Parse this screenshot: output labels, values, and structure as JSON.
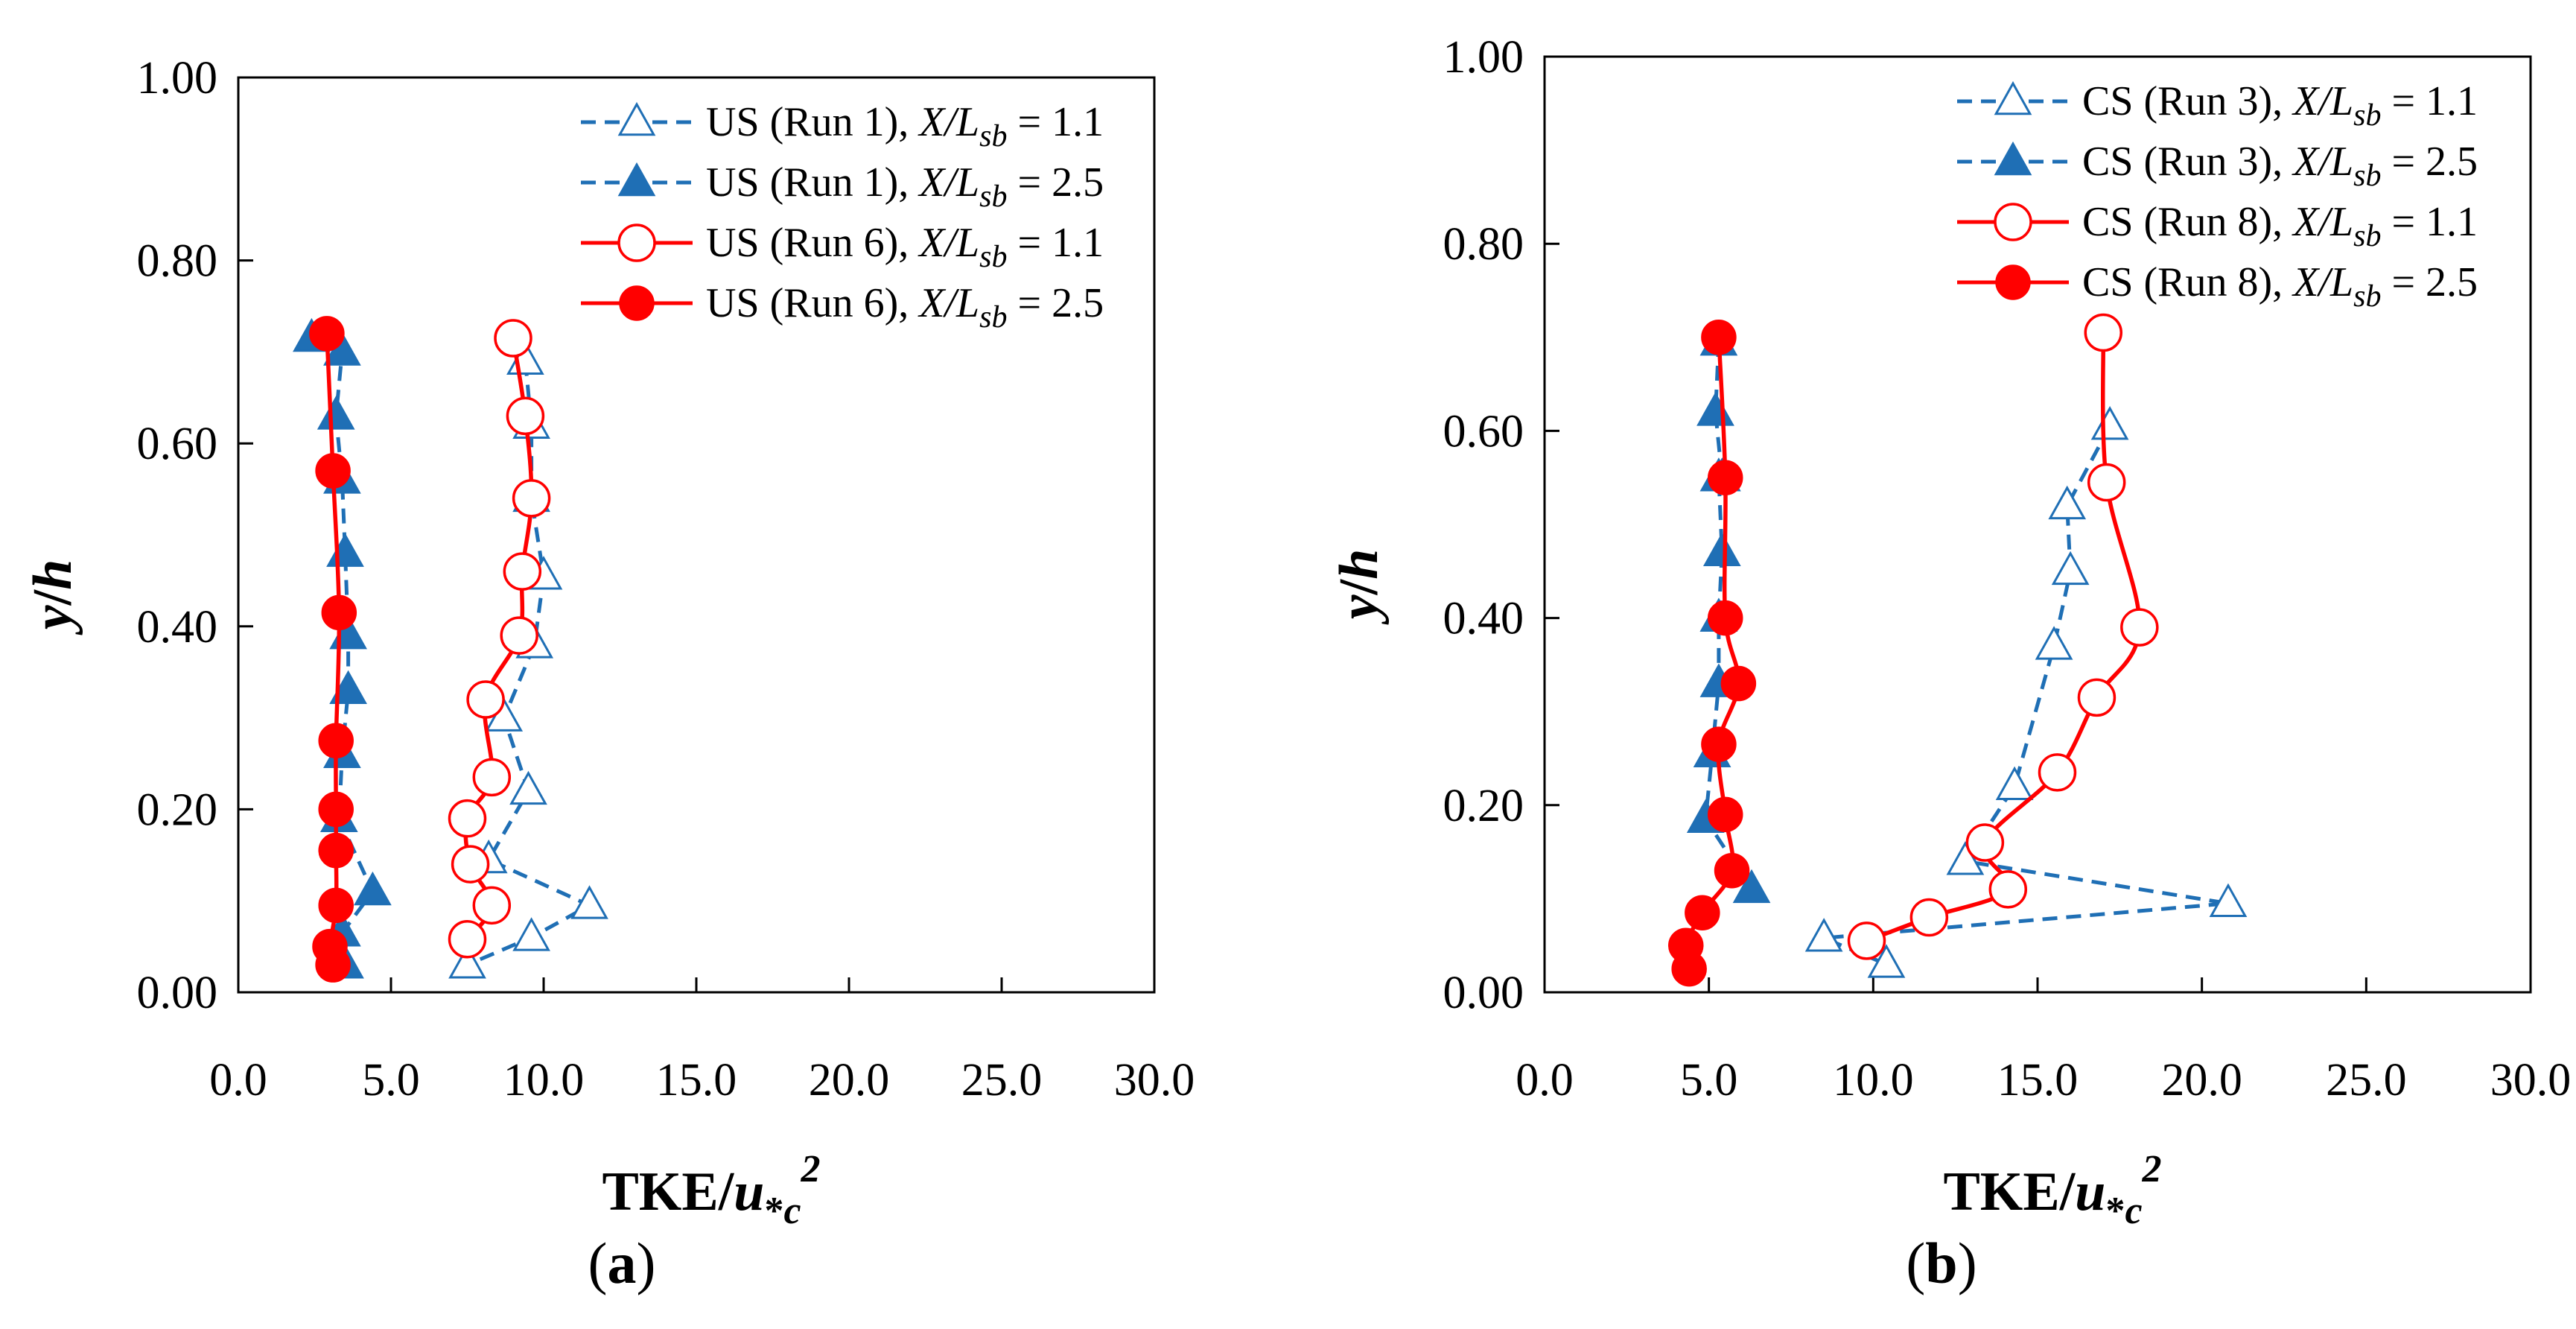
{
  "chart_data": [
    {
      "type": "line",
      "panel_label": {
        "pre": "(",
        "letter": "a",
        "post": ")"
      },
      "xlabel": {
        "main": "TKE/",
        "var": "u",
        "sub_star": "*",
        "sub_c": "c",
        "sup": "2"
      },
      "ylabel": {
        "var1": "y",
        "slash": "/",
        "var2": "h"
      },
      "xlim": [
        0,
        30
      ],
      "ylim": [
        0,
        1
      ],
      "xticks": [
        "0.0",
        "5.0",
        "10.0",
        "15.0",
        "20.0",
        "25.0",
        "30.0"
      ],
      "yticks": [
        "0.00",
        "0.20",
        "0.40",
        "0.60",
        "0.80",
        "1.00"
      ],
      "grid": false,
      "legend_position": "top-right",
      "series": [
        {
          "prefix": "US (Run 1), ",
          "var": "X",
          "slash": "/",
          "sub_var": "L",
          "sub": "sb",
          "suffix": " = 1.1",
          "color": "#1f6fb5",
          "line": "dashed",
          "marker": "triangle-open",
          "x": [
            7.5,
            11.5,
            8.2,
            9.5,
            8.7,
            9.7,
            10.0,
            9.6,
            9.6,
            9.4,
            9.6
          ],
          "y": [
            0.03,
            0.095,
            0.145,
            0.22,
            0.3,
            0.38,
            0.455,
            0.54,
            0.62,
            0.69,
            0.06
          ]
        },
        {
          "prefix": "US (Run 1), ",
          "var": "X",
          "slash": "/",
          "sub_var": "L",
          "sub": "sb",
          "suffix": " = 2.5",
          "color": "#1f6fb5",
          "line": "dashed",
          "marker": "triangle-filled",
          "x": [
            3.5,
            3.4,
            4.4,
            3.3,
            3.4,
            3.6,
            3.6,
            3.5,
            3.4,
            3.2,
            3.4,
            2.4
          ],
          "y": [
            0.03,
            0.065,
            0.11,
            0.19,
            0.26,
            0.33,
            0.39,
            0.48,
            0.56,
            0.63,
            0.7,
            0.715
          ]
        },
        {
          "prefix": "US (Run 6), ",
          "var": "X",
          "slash": "/",
          "sub_var": "L",
          "sub": "sb",
          "suffix": " = 1.1",
          "color": "#ff0000",
          "line": "solid",
          "marker": "circle-open",
          "x": [
            7.5,
            8.3,
            7.6,
            7.5,
            8.3,
            8.1,
            9.2,
            9.3,
            9.6,
            9.4,
            9.0
          ],
          "y": [
            0.058,
            0.095,
            0.14,
            0.19,
            0.235,
            0.32,
            0.39,
            0.46,
            0.54,
            0.63,
            0.715
          ]
        },
        {
          "prefix": "US (Run 6), ",
          "var": "X",
          "slash": "/",
          "sub_var": "L",
          "sub": "sb",
          "suffix": " = 2.5",
          "color": "#ff0000",
          "line": "solid",
          "marker": "circle-filled",
          "x": [
            3.1,
            3.0,
            3.2,
            3.2,
            3.2,
            3.2,
            3.3,
            3.1,
            2.9
          ],
          "y": [
            0.03,
            0.05,
            0.095,
            0.155,
            0.2,
            0.275,
            0.415,
            0.57,
            0.72
          ]
        }
      ]
    },
    {
      "type": "line",
      "panel_label": {
        "pre": "(",
        "letter": "b",
        "post": ")"
      },
      "xlabel": {
        "main": "TKE/",
        "var": "u",
        "sub_star": "*",
        "sub_c": "c",
        "sup": "2"
      },
      "ylabel": {
        "var1": "y",
        "slash": "/",
        "var2": "h"
      },
      "xlim": [
        0,
        30
      ],
      "ylim": [
        0,
        1
      ],
      "xticks": [
        "0.0",
        "5.0",
        "10.0",
        "15.0",
        "20.0",
        "25.0",
        "30.0"
      ],
      "yticks": [
        "0.00",
        "0.20",
        "0.40",
        "0.60",
        "0.80",
        "1.00"
      ],
      "grid": false,
      "legend_position": "top-right",
      "series": [
        {
          "prefix": "CS (Run 3), ",
          "var": "X",
          "slash": "/",
          "sub_var": "L",
          "sub": "sb",
          "suffix": " = 1.1",
          "color": "#1f6fb5",
          "line": "dashed",
          "marker": "triangle-open",
          "x": [
            10.4,
            8.5,
            20.8,
            12.8,
            14.3,
            15.5,
            16.0,
            15.9,
            17.2
          ],
          "y": [
            0.03,
            0.058,
            0.095,
            0.14,
            0.22,
            0.37,
            0.45,
            0.52,
            0.605
          ]
        },
        {
          "prefix": "CS (Run 3), ",
          "var": "X",
          "slash": "/",
          "sub_var": "L",
          "sub": "sb",
          "suffix": " = 2.5",
          "color": "#1f6fb5",
          "line": "dashed",
          "marker": "triangle-filled",
          "x": [
            6.3,
            4.9,
            5.1,
            5.3,
            5.3,
            5.4,
            5.4,
            5.2,
            5.3,
            5.3,
            5.3
          ],
          "y": [
            0.11,
            0.185,
            0.255,
            0.33,
            0.4,
            0.47,
            0.55,
            0.62,
            0.695,
            0.4,
            0.55
          ]
        },
        {
          "prefix": "CS (Run 8), ",
          "var": "X",
          "slash": "/",
          "sub_var": "L",
          "sub": "sb",
          "suffix": " = 1.1",
          "color": "#ff0000",
          "line": "solid",
          "marker": "circle-open",
          "x": [
            9.8,
            11.7,
            14.1,
            13.4,
            15.6,
            16.8,
            18.1,
            17.1,
            17.0
          ],
          "y": [
            0.055,
            0.08,
            0.11,
            0.16,
            0.235,
            0.315,
            0.39,
            0.545,
            0.705
          ]
        },
        {
          "prefix": "CS (Run 8), ",
          "var": "X",
          "slash": "/",
          "sub_var": "L",
          "sub": "sb",
          "suffix": " = 2.5",
          "color": "#ff0000",
          "line": "solid",
          "marker": "circle-filled",
          "x": [
            4.4,
            4.3,
            4.8,
            5.7,
            5.5,
            5.3,
            5.9,
            5.5,
            5.5,
            5.3
          ],
          "y": [
            0.025,
            0.05,
            0.085,
            0.13,
            0.19,
            0.265,
            0.33,
            0.4,
            0.55,
            0.7
          ]
        }
      ]
    }
  ]
}
